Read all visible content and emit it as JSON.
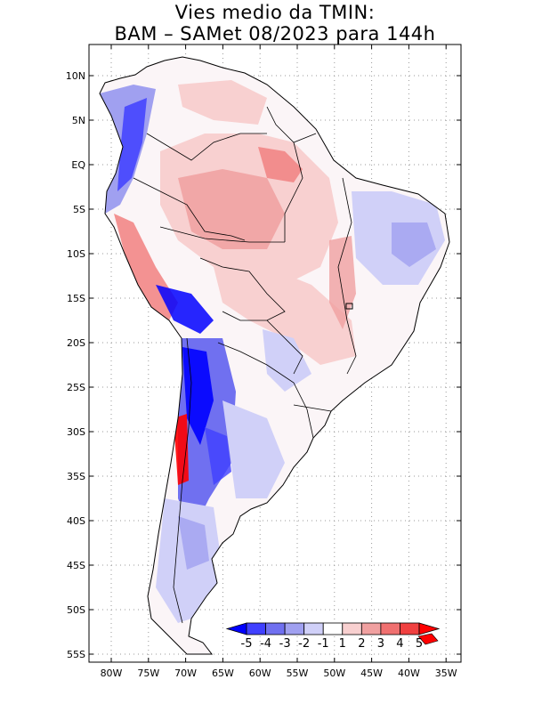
{
  "title": {
    "line1": "Vies medio da TMIN:",
    "line2": "BAM – SAMet 08/2023  para 144h"
  },
  "axes": {
    "lat_labels": [
      "10N",
      "5N",
      "EQ",
      "5S",
      "10S",
      "15S",
      "20S",
      "25S",
      "30S",
      "35S",
      "40S",
      "45S",
      "50S",
      "55S"
    ],
    "lon_labels": [
      "80W",
      "75W",
      "70W",
      "65W",
      "60W",
      "55W",
      "50W",
      "45W",
      "40W",
      "35W"
    ]
  },
  "colorbar": {
    "labels": [
      "-5",
      "-4",
      "-3",
      "-2",
      "-1",
      "1",
      "2",
      "3",
      "4",
      "5"
    ],
    "colors": [
      "#0000ff",
      "#4040ff",
      "#7070f0",
      "#a0a0f0",
      "#d0d0f8",
      "#ffffff",
      "#f8d0d0",
      "#f0a0a0",
      "#f07070",
      "#f04040",
      "#ff0000"
    ]
  },
  "palette": {
    "land_light_red": "#f8d0d0",
    "land_red": "#f0a0a0",
    "land_light_blue": "#d0d0f8",
    "land_blue": "#7070f0",
    "land_deep_blue": "#0000ff",
    "land_deep_red": "#ff0000",
    "border": "#000000"
  }
}
